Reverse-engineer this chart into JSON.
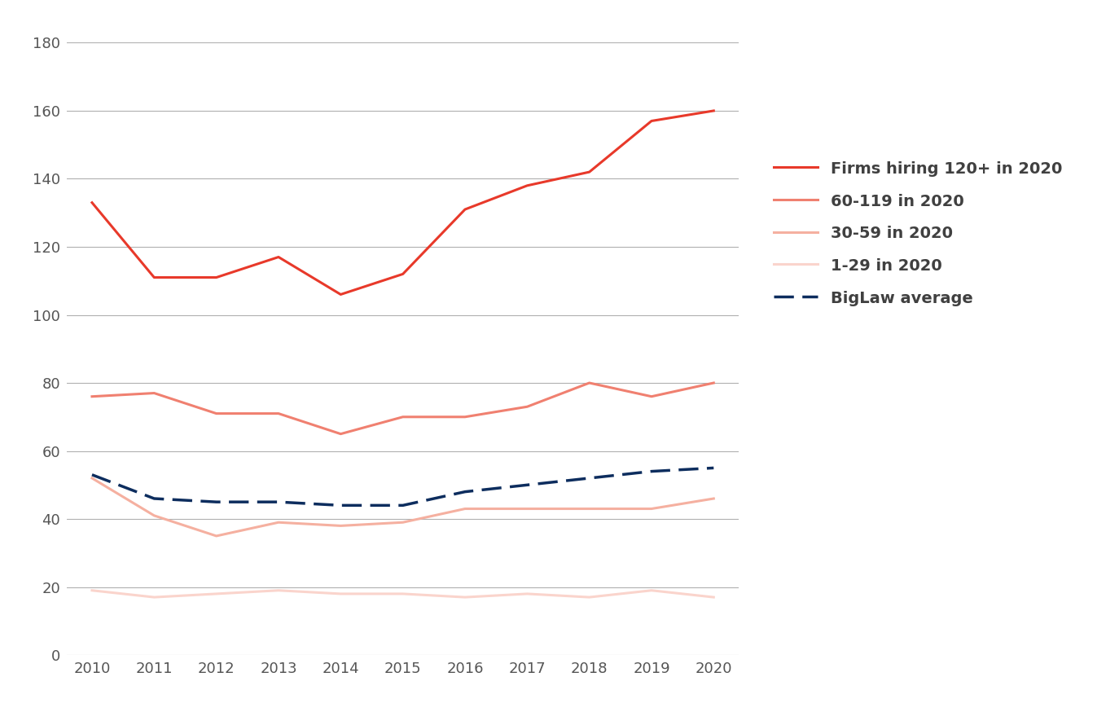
{
  "years": [
    2010,
    2011,
    2012,
    2013,
    2014,
    2015,
    2016,
    2017,
    2018,
    2019,
    2020
  ],
  "firms_120plus": [
    133,
    111,
    111,
    117,
    106,
    112,
    131,
    138,
    142,
    157,
    160
  ],
  "firms_60_119": [
    76,
    77,
    71,
    71,
    65,
    70,
    70,
    73,
    80,
    76,
    80
  ],
  "firms_30_59": [
    52,
    41,
    35,
    39,
    38,
    39,
    43,
    43,
    43,
    43,
    46
  ],
  "firms_1_29": [
    19,
    17,
    18,
    19,
    18,
    18,
    17,
    18,
    17,
    19,
    17
  ],
  "biglaw_avg": [
    53,
    46,
    45,
    45,
    44,
    44,
    48,
    50,
    52,
    54,
    55
  ],
  "color_120plus": "#e8392a",
  "color_60_119": "#f08070",
  "color_30_59": "#f5b0a0",
  "color_1_29": "#fad4cc",
  "color_biglaw": "#0d2d5e",
  "label_120plus": "Firms hiring 120+ in 2020",
  "label_60_119": "60-119 in 2020",
  "label_30_59": "30-59 in 2020",
  "label_1_29": "1-29 in 2020",
  "label_biglaw": "BigLaw average",
  "ylim": [
    0,
    180
  ],
  "yticks": [
    0,
    20,
    40,
    60,
    80,
    100,
    120,
    140,
    160,
    180
  ],
  "background_color": "#ffffff",
  "grid_color": "#b0b0b0",
  "legend_fontsize": 14,
  "tick_fontsize": 13,
  "legend_text_color": "#404040"
}
